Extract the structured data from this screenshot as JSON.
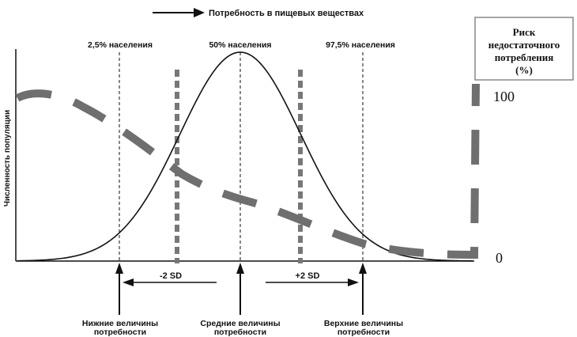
{
  "legend": {
    "arrow_label": "Потребность в пищевых веществах"
  },
  "axis": {
    "ylabel": "Численность популяции"
  },
  "percentiles": {
    "p2_5": "2,5% населения",
    "p50": "50% населения",
    "p97_5": "97,5% населения"
  },
  "sd": {
    "minus": "-2 SD",
    "plus": "+2 SD"
  },
  "requirements": {
    "lower_line1": "Нижние величины",
    "lower_line2": "потребности",
    "mean_line1": "Средние величины",
    "mean_line2": "потребности",
    "upper_line1": "Верхние величины",
    "upper_line2": "потребности"
  },
  "risk": {
    "title_line1": "Риск",
    "title_line2": "недостаточного",
    "title_line3": "потребления",
    "title_line4": "(%)",
    "tick_high": "100",
    "tick_low": "0"
  },
  "colors": {
    "ink": "#111111",
    "risk_curve": "#6f6f6f",
    "sd_lines": "#777777"
  }
}
